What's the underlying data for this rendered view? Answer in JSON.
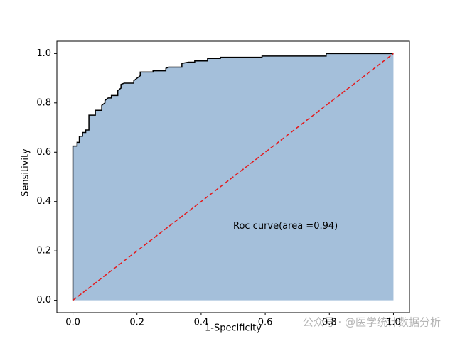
{
  "chart_data": {
    "type": "line",
    "x_label": "1-Specificity",
    "y_label": "Sensitivity",
    "xlim": [
      -0.05,
      1.05
    ],
    "ylim": [
      -0.05,
      1.05
    ],
    "xticks": [
      {
        "value": 0,
        "label": "0.0"
      },
      {
        "value": 0.2,
        "label": "0.2"
      },
      {
        "value": 0.4,
        "label": "0.4"
      },
      {
        "value": 0.6,
        "label": "0.6"
      },
      {
        "value": 0.8,
        "label": "0.8"
      },
      {
        "value": 1,
        "label": "1.0"
      }
    ],
    "yticks": [
      {
        "value": 0,
        "label": "0.0"
      },
      {
        "value": 0.2,
        "label": "0.2"
      },
      {
        "value": 0.4,
        "label": "0.4"
      },
      {
        "value": 0.6,
        "label": "0.6"
      },
      {
        "value": 0.8,
        "label": "0.8"
      },
      {
        "value": 1,
        "label": "1.0"
      }
    ],
    "annotation": {
      "text": "Roc curve(area =0.94)",
      "x": 0.5,
      "y": 0.3
    },
    "series": [
      {
        "name": "Roc curve",
        "color": "#000000",
        "fill": "#a4bfda",
        "style": "solid",
        "x": [
          0,
          0,
          0.013,
          0.013,
          0.02,
          0.02,
          0.03,
          0.03,
          0.04,
          0.04,
          0.05,
          0.05,
          0.07,
          0.07,
          0.09,
          0.09,
          0.1,
          0.1,
          0.11,
          0.12,
          0.12,
          0.14,
          0.14,
          0.15,
          0.15,
          0.16,
          0.19,
          0.19,
          0.2,
          0.21,
          0.21,
          0.25,
          0.25,
          0.29,
          0.29,
          0.3,
          0.34,
          0.34,
          0.36,
          0.38,
          0.38,
          0.42,
          0.42,
          0.46,
          0.46,
          0.59,
          0.59,
          0.79,
          0.79,
          1
        ],
        "values": [
          0,
          0.625,
          0.625,
          0.64,
          0.64,
          0.665,
          0.665,
          0.68,
          0.68,
          0.69,
          0.69,
          0.75,
          0.75,
          0.77,
          0.77,
          0.79,
          0.8,
          0.81,
          0.82,
          0.82,
          0.83,
          0.83,
          0.85,
          0.86,
          0.875,
          0.88,
          0.88,
          0.89,
          0.9,
          0.91,
          0.925,
          0.925,
          0.93,
          0.93,
          0.94,
          0.945,
          0.945,
          0.96,
          0.965,
          0.965,
          0.97,
          0.97,
          0.98,
          0.98,
          0.985,
          0.985,
          0.99,
          0.99,
          1,
          1
        ]
      },
      {
        "color": "#e41a1c",
        "style": "dashed",
        "x": [
          0,
          1
        ],
        "values": [
          0,
          1
        ]
      }
    ]
  },
  "watermark": "公众号 · @医学统计数据分析"
}
